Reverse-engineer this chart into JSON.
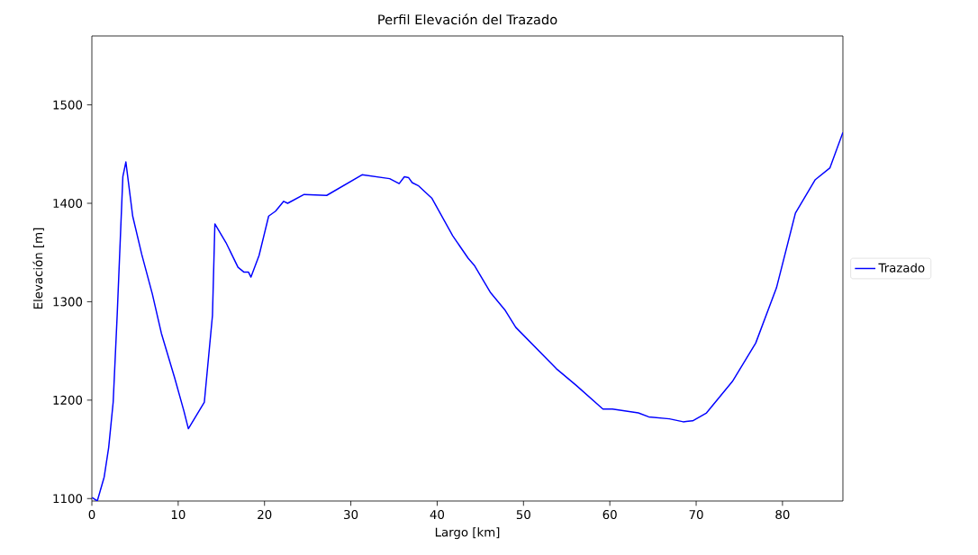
{
  "chart_data": {
    "type": "line",
    "title": "Perfil Elevación del Trazado",
    "xlabel": "Largo [km]",
    "ylabel": "Elevación [m]",
    "xlim": [
      0,
      87.0
    ],
    "ylim": [
      1097.5,
      1570
    ],
    "xticks": [
      0,
      10,
      20,
      30,
      40,
      50,
      60,
      70,
      80
    ],
    "yticks": [
      1100,
      1200,
      1300,
      1400,
      1500
    ],
    "legend": "right",
    "series": [
      {
        "name": "Trazado",
        "color": "#0000ff",
        "x": [
          0.03,
          0.63,
          1.43,
          1.95,
          2.47,
          2.93,
          3.59,
          3.94,
          4.73,
          5.78,
          7.0,
          8.05,
          9.61,
          10.66,
          11.18,
          13.03,
          13.97,
          14.25,
          15.54,
          16.93,
          17.63,
          18.15,
          18.43,
          19.37,
          20.48,
          21.28,
          22.22,
          22.68,
          24.59,
          27.2,
          31.3,
          34.5,
          35.6,
          36.2,
          36.7,
          37.1,
          37.8,
          39.4,
          41.8,
          43.6,
          44.3,
          46.2,
          47.9,
          49.1,
          53.8,
          56.1,
          59.2,
          60.3,
          63.3,
          64.5,
          66.9,
          68.5,
          69.6,
          71.2,
          74.2,
          76.9,
          79.3,
          81.5,
          83.8,
          85.5,
          87.0
        ],
        "values": [
          1101,
          1097.5,
          1122,
          1152,
          1198,
          1286,
          1427,
          1442,
          1387,
          1348,
          1308,
          1268,
          1222,
          1189,
          1171,
          1198,
          1286,
          1379,
          1360,
          1335,
          1330,
          1330,
          1325,
          1347,
          1387,
          1392,
          1402,
          1400,
          1409,
          1408,
          1429,
          1425,
          1420,
          1427,
          1426,
          1421,
          1418,
          1405,
          1367,
          1344,
          1337,
          1309,
          1291,
          1274,
          1232,
          1215,
          1191,
          1191,
          1187,
          1183,
          1181,
          1178,
          1179,
          1187,
          1219,
          1258,
          1314,
          1390,
          1424,
          1436,
          1472
        ]
      }
    ]
  }
}
